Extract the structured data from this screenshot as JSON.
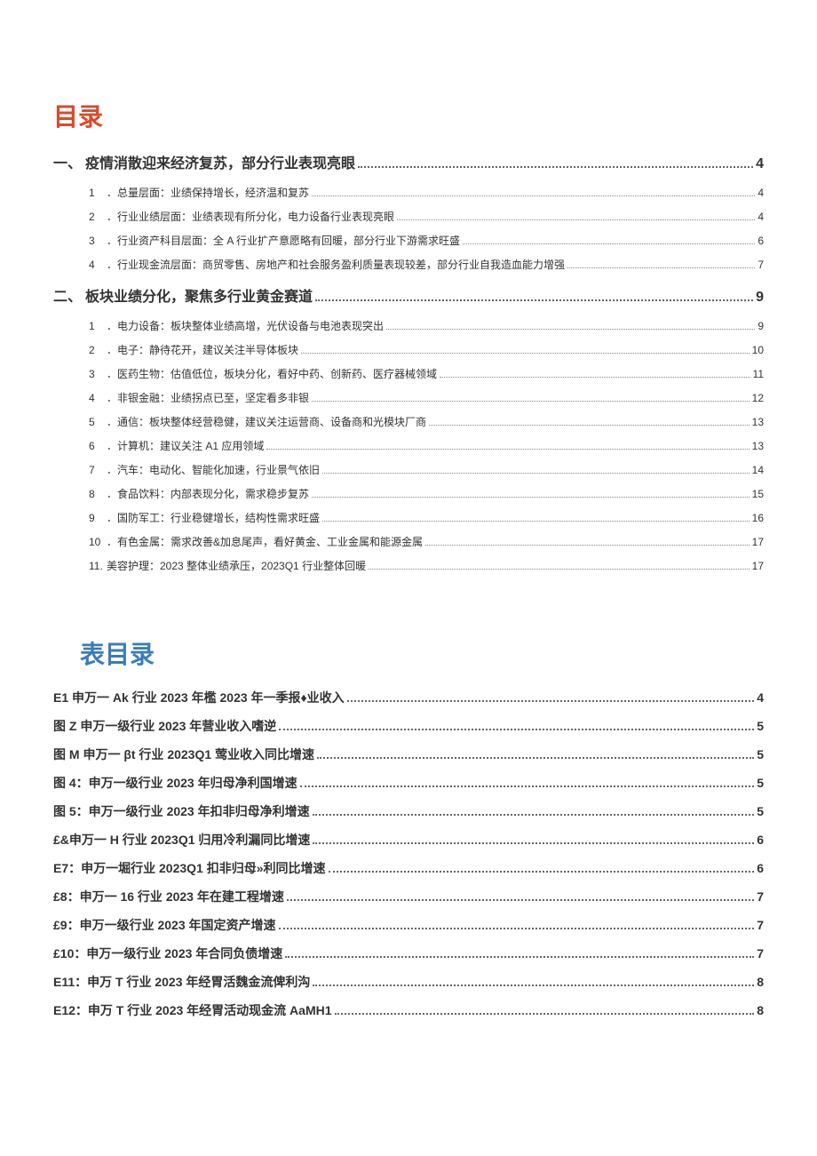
{
  "title_color": "#d94a2a",
  "subtitle_color": "#3b7cb8",
  "text_color": "#333333",
  "toc_title": "目录",
  "figures_title": "表目录",
  "toc": [
    {
      "num": "一、",
      "text": "疫情消散迎来经济复苏，部分行业表现亮眼",
      "page": "4",
      "children": [
        {
          "num": "1",
          "text": "．总量层面：业绩保持增长，经济温和复苏",
          "page": "4"
        },
        {
          "num": "2",
          "text": "．行业业绩层面：业绩表现有所分化，电力设备行业表现亮眼",
          "page": "4"
        },
        {
          "num": "3",
          "text": "．行业资产科目层面：全 A 行业扩产意愿略有回暖，部分行业下游需求旺盛",
          "page": "6"
        },
        {
          "num": "4",
          "text": "．行业现金流层面：商贸零售、房地产和社会服务盈利质量表现较差，部分行业自我造血能力增强",
          "page": "7"
        }
      ]
    },
    {
      "num": "二、",
      "text": "板块业绩分化，聚焦多行业黄金赛道",
      "page": "9",
      "children": [
        {
          "num": "1",
          "text": "．电力设备：板块整体业绩高增，光伏设备与电池表现突出",
          "page": "9"
        },
        {
          "num": "2",
          "text": "．电子：静待花开，建议关注半导体板块",
          "page": "10"
        },
        {
          "num": "3",
          "text": "．医药生物：估值低位，板块分化，看好中药、创新药、医疗器械领域",
          "page": "11"
        },
        {
          "num": "4",
          "text": "．非银金融：业绩拐点已至，坚定看多非银",
          "page": "12"
        },
        {
          "num": "5",
          "text": "．通信：板块整体经营稳健，建议关注运营商、设备商和光模块厂商",
          "page": "13"
        },
        {
          "num": "6",
          "text": "．计算机：建议关注 A1 应用领域",
          "page": "13"
        },
        {
          "num": "7",
          "text": "．汽车：电动化、智能化加速，行业景气依旧",
          "page": "14"
        },
        {
          "num": "8",
          "text": "．食品饮料：内部表现分化，需求稳步复苏",
          "page": "15"
        },
        {
          "num": "9",
          "text": "．国防军工：行业稳健增长，结构性需求旺盛",
          "page": "16"
        },
        {
          "num": "10",
          "text": "．有色金属：需求改善&加息尾声，看好黄金、工业金属和能源金属",
          "page": "17"
        },
        {
          "num": "11.",
          "text": " 美容护理：2023 整体业绩承压，2023Q1 行业整体回暖",
          "page": "17"
        }
      ]
    }
  ],
  "figures": [
    {
      "text": "E1 申万一 Ak 行业 2023 年檻 2023 年一季报♦业收入",
      "page": "4"
    },
    {
      "text": "图 Z 申万一级行业 2023 年营业收入嗜逆",
      "page": "5"
    },
    {
      "text": "图 M 申万一 βt 行业 2023Q1 莺业收入同比增速",
      "page": "5"
    },
    {
      "text": "图 4：申万一级行业 2023 年归母净利国增速",
      "page": "5"
    },
    {
      "text": "图 5：申万一级行业 2023 年扣非归母净利增速",
      "page": "5"
    },
    {
      "text": "£&申万一 H 行业 2023Q1 归用冷利漏同比增速",
      "page": "6"
    },
    {
      "text": "E7：申万一堀行业 2023Q1 扣非归母»利同比增速",
      "page": "6"
    },
    {
      "text": "£8：申万一 16 行业 2023 年在建工程增速",
      "page": "7"
    },
    {
      "text": "£9：申万一级行业 2023 年国定资产增速",
      "page": "7"
    },
    {
      "text": "£10：申万一级行业 2023 年合同负债增速",
      "page": "7"
    },
    {
      "text": "E11：申万 T 行业 2023 年经胃活魏金流俾利沟",
      "page": "8"
    },
    {
      "text": "E12：申万 T 行业 2023 年经胃活动现金流 AaMH1",
      "page": "8"
    }
  ]
}
